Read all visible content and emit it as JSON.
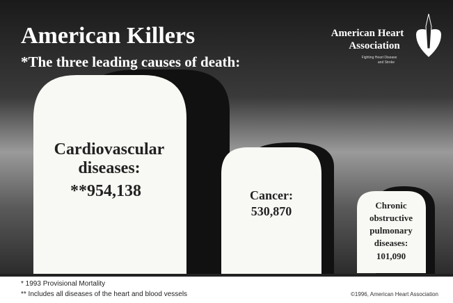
{
  "header": {
    "title": "American Killers",
    "subtitle": "*The three leading causes of death:"
  },
  "logo": {
    "name_lines": [
      "American Heart",
      "Association"
    ],
    "tagline_lines": [
      "Fighting Heart Disease",
      "and Stroke"
    ]
  },
  "tombstones": [
    {
      "label_lines": [
        "Cardiovascular",
        "diseases:"
      ],
      "value": "**954,138"
    },
    {
      "label_lines": [
        "Cancer:"
      ],
      "value": "530,870"
    },
    {
      "label_lines": [
        "Chronic",
        "obstructive",
        "pulmonary",
        "diseases:"
      ],
      "value": "101,090"
    }
  ],
  "footnotes": [
    "* 1993 Provisional Mortality",
    "** Includes all diseases of the heart and blood vessels"
  ],
  "copyright": "©1996, American Heart Association"
}
